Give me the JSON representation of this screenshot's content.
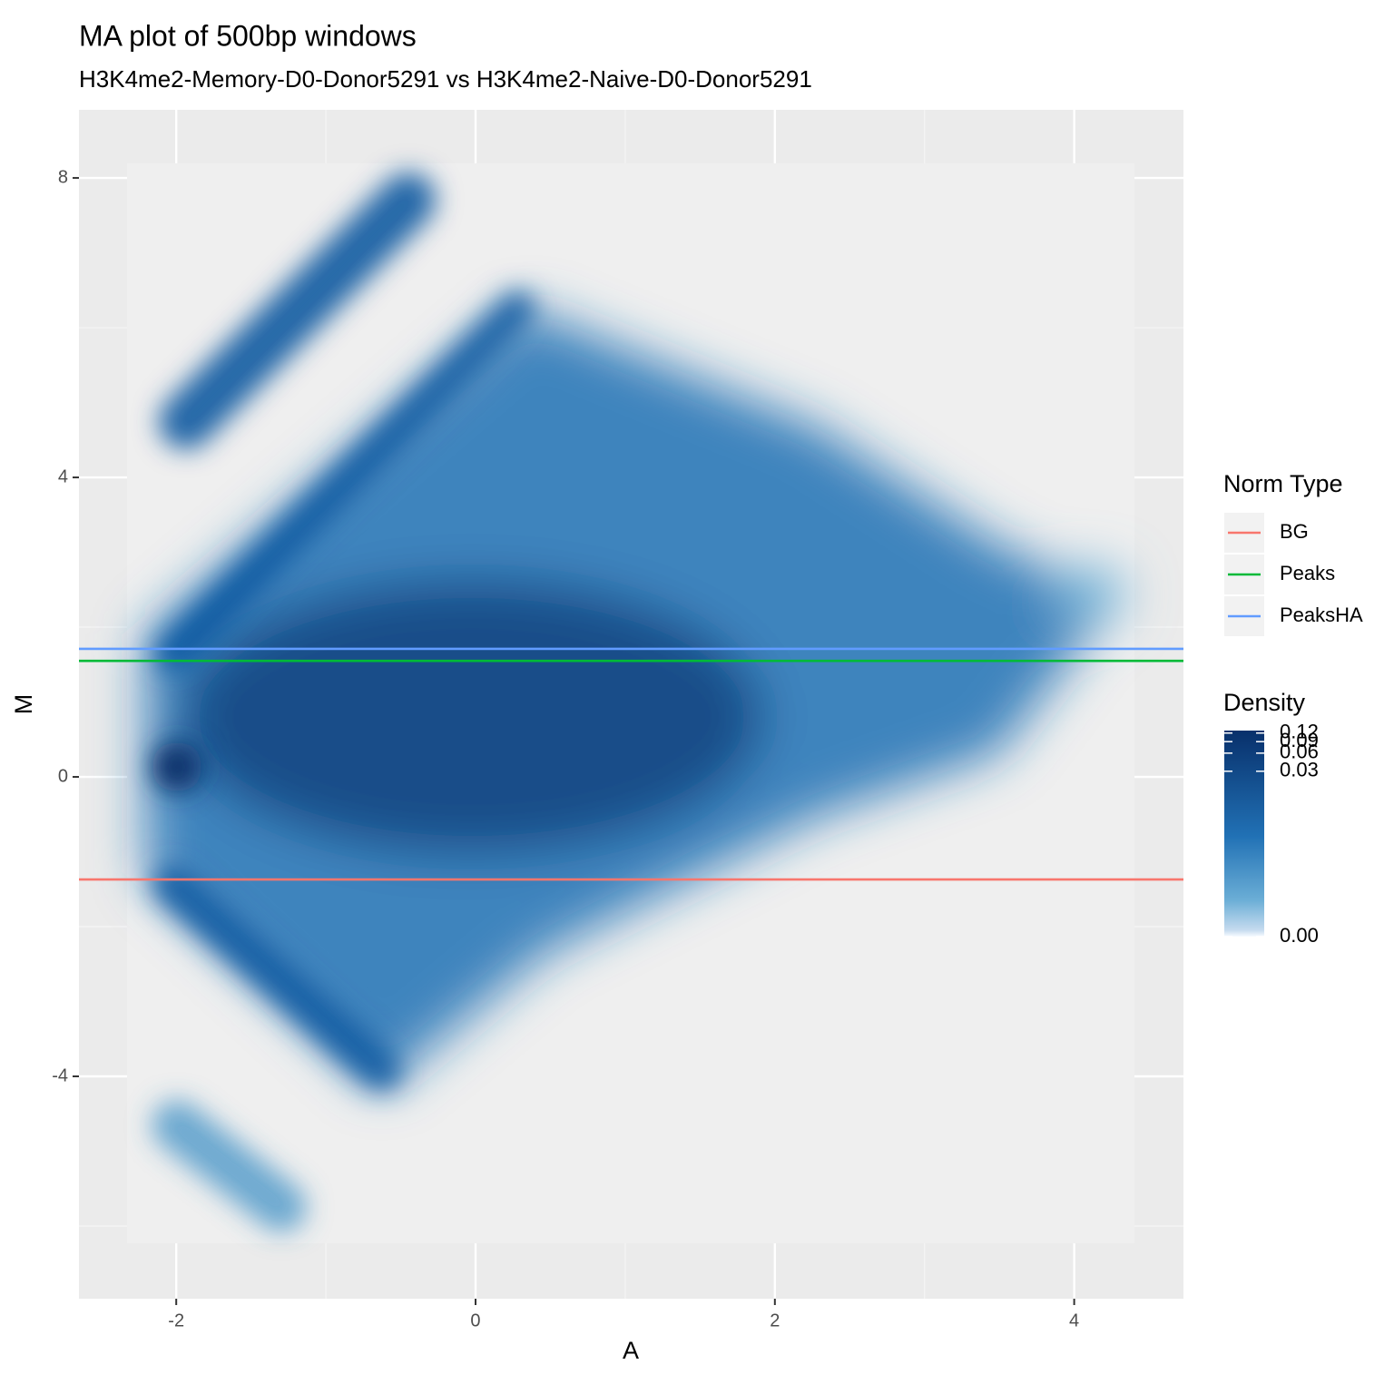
{
  "chart_data": {
    "type": "density",
    "title": "MA plot of 500bp windows",
    "subtitle": "H3K4me2-Memory-D0-Donor5291 vs H3K4me2-Naive-D0-Donor5291",
    "x_label": "A",
    "y_label": "M",
    "xlim": [
      -2.65,
      4.73
    ],
    "xticks": [
      -2,
      0,
      2,
      4
    ],
    "ylim": [
      -6.97,
      8.91
    ],
    "yticks": [
      -4,
      0,
      4,
      8
    ],
    "grid": true,
    "legend_position": "right",
    "legend_title": "Norm Type",
    "series": [
      {
        "name": "BG",
        "color": "#f8766d",
        "values": [
          -1.37
        ]
      },
      {
        "name": "Peaks",
        "color": "#00ba38",
        "values": [
          1.55
        ]
      },
      {
        "name": "PeaksHA",
        "color": "#619cff",
        "values": [
          1.71
        ]
      }
    ],
    "colorbar": {
      "title": "Density",
      "lim": [
        0,
        0.13
      ],
      "ticks": [
        {
          "value": 0,
          "label": "0.00"
        },
        0.03,
        0.06,
        0.09,
        0.12
      ],
      "colors": [
        "#f7fbff",
        "#c6dbef",
        "#6baed6",
        "#2171b5",
        "#08306b"
      ]
    }
  }
}
